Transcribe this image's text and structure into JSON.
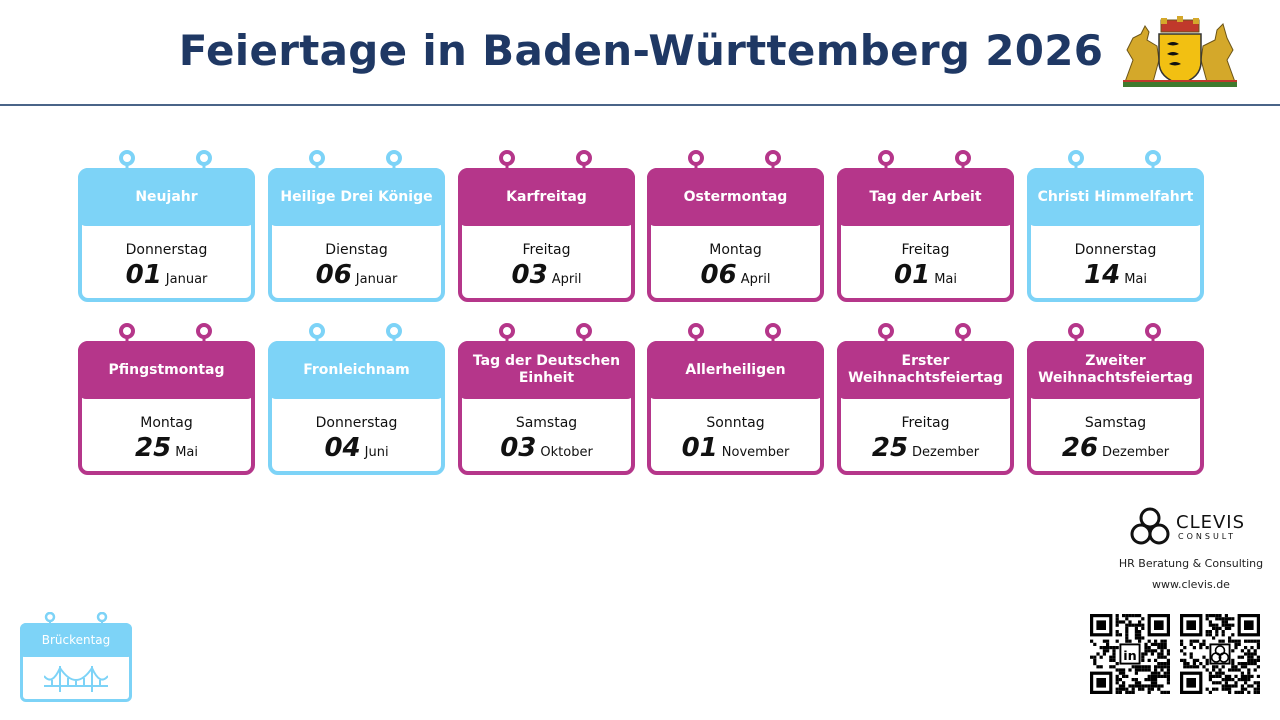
{
  "title": "Feiertage in Baden-Württemberg 2026",
  "colors": {
    "title": "#1f3864",
    "holiday": "#b5368a",
    "bridge_day": "#7dd3f7",
    "divider": "#4a6488"
  },
  "holidays": [
    {
      "name": "Neujahr",
      "weekday": "Donnerstag",
      "day": "01",
      "month": "Januar",
      "bridge_day": true
    },
    {
      "name": "Heilige Drei Könige",
      "weekday": "Dienstag",
      "day": "06",
      "month": "Januar",
      "bridge_day": true
    },
    {
      "name": "Karfreitag",
      "weekday": "Freitag",
      "day": "03",
      "month": "April",
      "bridge_day": false
    },
    {
      "name": "Ostermontag",
      "weekday": "Montag",
      "day": "06",
      "month": "April",
      "bridge_day": false
    },
    {
      "name": "Tag der Arbeit",
      "weekday": "Freitag",
      "day": "01",
      "month": "Mai",
      "bridge_day": false
    },
    {
      "name": "Christi Himmelfahrt",
      "weekday": "Donnerstag",
      "day": "14",
      "month": "Mai",
      "bridge_day": true
    },
    {
      "name": "Pfingstmontag",
      "weekday": "Montag",
      "day": "25",
      "month": "Mai",
      "bridge_day": false
    },
    {
      "name": "Fronleichnam",
      "weekday": "Donnerstag",
      "day": "04",
      "month": "Juni",
      "bridge_day": true
    },
    {
      "name": "Tag der Deutschen Einheit",
      "weekday": "Samstag",
      "day": "03",
      "month": "Oktober",
      "bridge_day": false
    },
    {
      "name": "Allerheiligen",
      "weekday": "Sonntag",
      "day": "01",
      "month": "November",
      "bridge_day": false
    },
    {
      "name": "Erster Weihnachtsfeiertag",
      "weekday": "Freitag",
      "day": "25",
      "month": "Dezember",
      "bridge_day": false
    },
    {
      "name": "Zweiter Weihnachtsfeiertag",
      "weekday": "Samstag",
      "day": "26",
      "month": "Dezember",
      "bridge_day": false
    }
  ],
  "legend": {
    "label": "Brückentag",
    "icon": "bridge-icon"
  },
  "brand": {
    "name": "CLEVIS",
    "sub": "CONSULT",
    "tagline": "HR Beratung & Consulting",
    "url": "www.clevis.de",
    "icon": "clevis-logo-icon"
  },
  "crest": {
    "icon": "baden-wuerttemberg-coat-of-arms-icon"
  },
  "qr_codes": [
    {
      "icon": "linkedin-qr-icon"
    },
    {
      "icon": "clevis-qr-icon"
    }
  ]
}
